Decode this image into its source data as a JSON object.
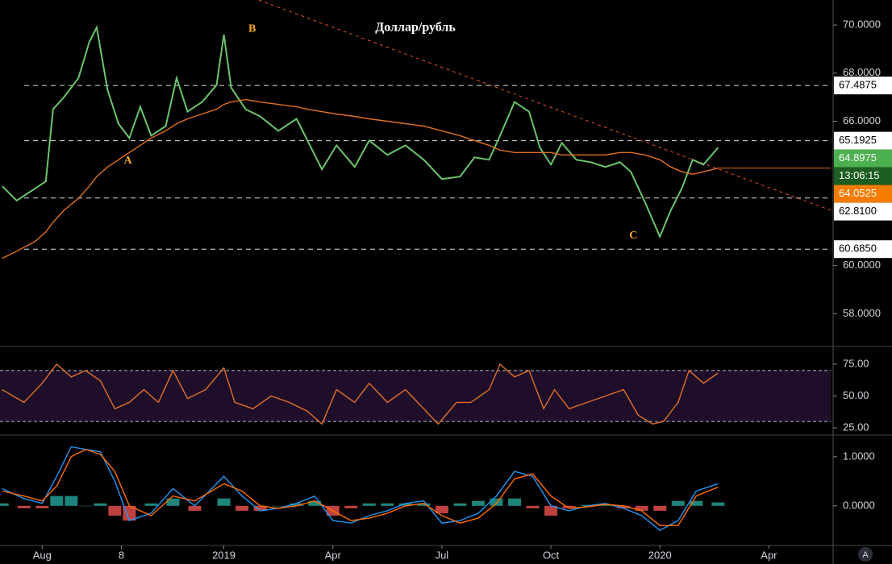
{
  "chart_data": [
    {
      "type": "line",
      "title": "Доллар/рубль",
      "xlim": [
        -1.16,
        21.7
      ],
      "x": [
        -1.1,
        -0.7,
        -0.2,
        0.1,
        0.3,
        0.6,
        1.0,
        1.3,
        1.5,
        1.8,
        2.1,
        2.4,
        2.7,
        3.0,
        3.4,
        3.7,
        4.0,
        4.4,
        4.8,
        5.0,
        5.2,
        5.6,
        6.0,
        6.5,
        7.0,
        7.3,
        7.7,
        8.1,
        8.6,
        9.0,
        9.5,
        10.0,
        10.5,
        11.0,
        11.5,
        11.9,
        12.3,
        12.6,
        13.0,
        13.4,
        13.7,
        14.0,
        14.3,
        14.7,
        15.1,
        15.5,
        15.9,
        16.2,
        16.6,
        17.0,
        17.3,
        17.6,
        17.9,
        18.2,
        18.6
      ],
      "series": [
        {
          "color": "#6cc46c",
          "values": [
            63.3,
            62.7,
            63.2,
            63.5,
            66.5,
            67.0,
            67.8,
            69.3,
            69.9,
            67.3,
            65.9,
            65.3,
            66.6,
            65.4,
            65.8,
            67.8,
            66.4,
            66.8,
            67.5,
            69.6,
            67.4,
            66.5,
            66.2,
            65.6,
            66.1,
            65.2,
            64.0,
            65.0,
            64.1,
            65.2,
            64.6,
            65.0,
            64.4,
            63.6,
            63.7,
            64.5,
            64.4,
            65.4,
            66.8,
            66.4,
            64.9,
            64.2,
            65.1,
            64.4,
            64.3,
            64.1,
            64.3,
            63.9,
            62.6,
            61.2,
            62.3,
            63.2,
            64.4,
            64.2,
            64.9
          ]
        },
        {
          "color": "#e0701e",
          "values": [
            60.3,
            60.6,
            61.0,
            61.4,
            61.8,
            62.3,
            62.8,
            63.3,
            63.7,
            64.1,
            64.4,
            64.7,
            65.0,
            65.3,
            65.6,
            65.9,
            66.1,
            66.3,
            66.5,
            66.7,
            66.8,
            66.9,
            66.8,
            66.7,
            66.6,
            66.5,
            66.4,
            66.3,
            66.2,
            66.1,
            66.0,
            65.9,
            65.8,
            65.6,
            65.4,
            65.2,
            65.0,
            64.8,
            64.7,
            64.7,
            64.7,
            64.7,
            64.6,
            64.6,
            64.6,
            64.6,
            64.7,
            64.7,
            64.6,
            64.4,
            64.1,
            63.9,
            63.8,
            63.9,
            64.05
          ]
        }
      ],
      "ylim": [
        56.64,
        71.04
      ],
      "yticks": [
        {
          "value": 70,
          "label": "70.0000"
        },
        {
          "value": 68,
          "label": "68.0000"
        },
        {
          "value": 66,
          "label": "66.0000"
        },
        {
          "value": 60,
          "label": "60.0000"
        },
        {
          "value": 58,
          "label": "58.0000"
        }
      ],
      "levels": [
        67.4875,
        65.1925,
        {
          "value": 62.81,
          "label": "62.8100"
        },
        {
          "value": 60.685,
          "label": "60.6850"
        }
      ],
      "last_price": 64.8975,
      "countdown": "13:06:15",
      "ma_last": 64.0525,
      "trendline": {
        "x": [
          5.96,
          21.7
        ],
        "values": [
          71.04,
          62.3
        ]
      },
      "annotations": [
        {
          "text": "A",
          "x": 2.36,
          "y": 64.35
        },
        {
          "text": "B",
          "x": 5.78,
          "y": 69.83
        },
        {
          "text": "C",
          "x": 16.27,
          "y": 61.24
        }
      ]
    },
    {
      "type": "line",
      "xlim": [
        -1.16,
        21.7
      ],
      "x": [
        -1.1,
        -0.5,
        0,
        0.4,
        0.8,
        1.2,
        1.6,
        2.0,
        2.4,
        2.8,
        3.2,
        3.6,
        4.0,
        4.5,
        5.0,
        5.3,
        5.8,
        6.3,
        6.8,
        7.3,
        7.7,
        8.1,
        8.6,
        9.0,
        9.5,
        10.0,
        10.5,
        10.9,
        11.4,
        11.8,
        12.3,
        12.6,
        13.0,
        13.4,
        13.8,
        14.1,
        14.5,
        15.0,
        15.5,
        16.0,
        16.4,
        16.8,
        17.1,
        17.5,
        17.8,
        18.2,
        18.6
      ],
      "series": [
        {
          "color": "#e0702a",
          "values": [
            55,
            45,
            60,
            75,
            65,
            70,
            62,
            40,
            45,
            55,
            45,
            70,
            48,
            55,
            72,
            45,
            40,
            50,
            45,
            38,
            28,
            55,
            45,
            60,
            45,
            55,
            40,
            28,
            45,
            45,
            55,
            75,
            65,
            70,
            40,
            55,
            40,
            45,
            50,
            55,
            35,
            28,
            30,
            45,
            70,
            60,
            68
          ]
        }
      ],
      "ylim": [
        19.3,
        88.9
      ],
      "yticks": [
        {
          "value": 75,
          "label": "75.00"
        },
        {
          "value": 50,
          "label": "50.00"
        },
        {
          "value": 25,
          "label": "25.00"
        }
      ],
      "bands": [
        30,
        70
      ]
    },
    {
      "type": "line",
      "xlim": [
        -1.16,
        21.7
      ],
      "x": [
        -1.1,
        -0.5,
        0,
        0.4,
        0.8,
        1.2,
        1.6,
        2.0,
        2.4,
        3.0,
        3.6,
        4.2,
        5.0,
        5.5,
        6.0,
        6.5,
        7.0,
        7.5,
        8.0,
        8.5,
        9.0,
        9.5,
        10.0,
        10.5,
        11.0,
        11.5,
        12.0,
        12.5,
        13.0,
        13.5,
        14.0,
        14.5,
        15.0,
        15.5,
        16.0,
        16.5,
        17.0,
        17.5,
        18.0,
        18.6
      ],
      "series": [
        {
          "type": "bar",
          "color": "#26a69a",
          "negative_color": "#ef5350",
          "values": [
            0.05,
            -0.05,
            -0.05,
            0.2,
            0.2,
            0.0,
            0.05,
            -0.2,
            -0.3,
            0.05,
            0.15,
            -0.1,
            0.15,
            -0.1,
            -0.1,
            0.0,
            0.05,
            0.1,
            -0.2,
            -0.05,
            0.05,
            0.05,
            0.05,
            0.05,
            -0.15,
            0.05,
            0.1,
            0.15,
            0.15,
            -0.05,
            -0.2,
            -0.05,
            0.02,
            0.02,
            -0.05,
            -0.1,
            -0.1,
            0.1,
            0.1,
            0.07
          ]
        },
        {
          "color": "#2196f3",
          "values": [
            0.35,
            0.15,
            0.05,
            0.6,
            1.2,
            1.15,
            1.1,
            0.5,
            -0.3,
            -0.15,
            0.35,
            0.0,
            0.6,
            0.2,
            -0.1,
            -0.05,
            0.05,
            0.2,
            -0.3,
            -0.35,
            -0.2,
            -0.1,
            0.05,
            0.1,
            -0.35,
            -0.3,
            -0.15,
            0.2,
            0.7,
            0.6,
            0.0,
            -0.1,
            0.0,
            0.05,
            -0.05,
            -0.2,
            -0.5,
            -0.3,
            0.3,
            0.45
          ]
        },
        {
          "color": "#ff6d00",
          "values": [
            0.3,
            0.2,
            0.1,
            0.4,
            1.0,
            1.15,
            1.05,
            0.7,
            0.0,
            -0.2,
            0.2,
            0.1,
            0.45,
            0.3,
            0.0,
            -0.05,
            0.0,
            0.1,
            -0.1,
            -0.3,
            -0.25,
            -0.15,
            0.0,
            0.05,
            -0.2,
            -0.35,
            -0.25,
            0.05,
            0.55,
            0.65,
            0.2,
            -0.05,
            -0.02,
            0.03,
            0.0,
            -0.1,
            -0.4,
            -0.4,
            0.2,
            0.38
          ]
        }
      ],
      "ylim": [
        -0.79,
        1.44
      ],
      "yticks": [
        {
          "value": 1,
          "label": "1.0000"
        },
        {
          "value": 0,
          "label": "0.0000"
        }
      ],
      "xticks": [
        {
          "value": 0,
          "label": "Aug"
        },
        {
          "value": 2.18,
          "label": "8"
        },
        {
          "value": 5,
          "label": "2019"
        },
        {
          "value": 8,
          "label": "Apr"
        },
        {
          "value": 11,
          "label": "Jul"
        },
        {
          "value": 14,
          "label": "Oct"
        },
        {
          "value": 17,
          "label": "2020"
        },
        {
          "value": 20,
          "label": "Apr"
        }
      ]
    }
  ],
  "auto_button": "A"
}
